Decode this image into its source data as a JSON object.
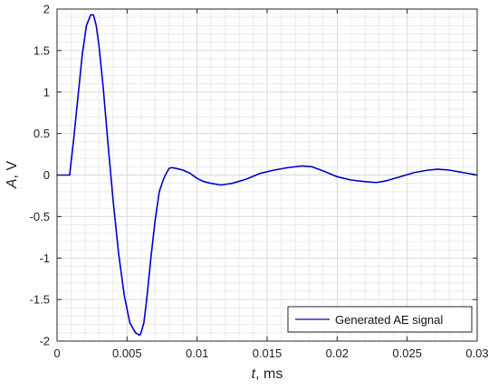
{
  "chart_data": {
    "type": "line",
    "xlabel_var": "t",
    "xlabel_unit": ", ms",
    "ylabel_var": "A",
    "ylabel_unit": ", V",
    "xlim": [
      0,
      0.03
    ],
    "ylim": [
      -2,
      2
    ],
    "xticks": [
      0,
      0.005,
      0.01,
      0.015,
      0.02,
      0.025,
      0.03
    ],
    "xtick_labels": [
      "0",
      "0.005",
      "0.01",
      "0.015",
      "0.02",
      "0.025",
      "0.03"
    ],
    "yticks": [
      -2,
      -1.5,
      -1,
      -0.5,
      0,
      0.5,
      1,
      1.5,
      2
    ],
    "ytick_labels": [
      "-2",
      "-1.5",
      "-1",
      "-0.5",
      "0",
      "0.5",
      "1",
      "1.5",
      "2"
    ],
    "grid": true,
    "minor_grid": true,
    "legend_placement": "bottom-right",
    "series": [
      {
        "name": "Generated AE signal",
        "color": "#0000cc",
        "x": [
          0,
          0.0005,
          0.0009,
          0.0012,
          0.0015,
          0.0018,
          0.0021,
          0.0024,
          0.0026,
          0.0028,
          0.003,
          0.0033,
          0.0036,
          0.004,
          0.0044,
          0.0048,
          0.0052,
          0.0056,
          0.0059,
          0.006,
          0.0062,
          0.0064,
          0.0067,
          0.007,
          0.0073,
          0.0076,
          0.0078,
          0.008,
          0.0082,
          0.0085,
          0.009,
          0.0095,
          0.01,
          0.0105,
          0.011,
          0.0117,
          0.0125,
          0.0135,
          0.0145,
          0.0155,
          0.0165,
          0.0175,
          0.0182,
          0.019,
          0.02,
          0.021,
          0.022,
          0.0228,
          0.0235,
          0.0245,
          0.0255,
          0.0265,
          0.0272,
          0.028,
          0.029,
          0.03
        ],
        "y": [
          0.0,
          0.0,
          0.0,
          0.45,
          0.95,
          1.45,
          1.8,
          1.93,
          1.93,
          1.8,
          1.55,
          1.05,
          0.45,
          -0.3,
          -0.95,
          -1.45,
          -1.78,
          -1.9,
          -1.93,
          -1.9,
          -1.78,
          -1.5,
          -1.0,
          -0.55,
          -0.2,
          -0.05,
          0.02,
          0.08,
          0.09,
          0.08,
          0.06,
          0.02,
          -0.04,
          -0.08,
          -0.1,
          -0.12,
          -0.1,
          -0.05,
          0.02,
          0.06,
          0.09,
          0.11,
          0.1,
          0.05,
          -0.02,
          -0.06,
          -0.08,
          -0.09,
          -0.07,
          -0.02,
          0.03,
          0.06,
          0.07,
          0.06,
          0.03,
          0.0
        ]
      }
    ]
  }
}
